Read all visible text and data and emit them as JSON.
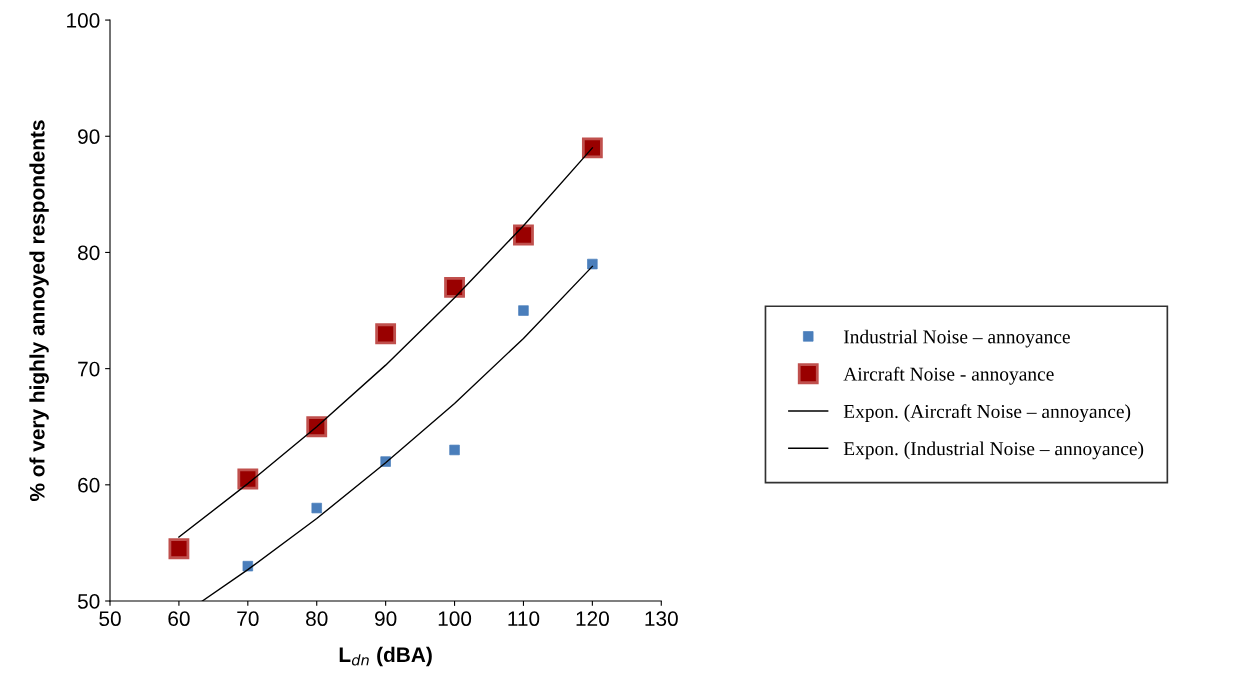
{
  "chart_data": {
    "type": "scatter",
    "xlabel": "L$_{dn}$ (dBA)",
    "ylabel": "% of very highly annoyed respondents",
    "xlim": [
      50,
      130
    ],
    "xticks": [
      50,
      60,
      70,
      80,
      90,
      100,
      110,
      120,
      130
    ],
    "ylim": [
      50,
      100
    ],
    "yticks": [
      50,
      60,
      70,
      80,
      90,
      100
    ],
    "grid": false,
    "legend": "right",
    "marker": "square",
    "series": [
      {
        "name": "Industrial Noise – annoyance",
        "color": "#4a7ebb",
        "x": [
          70,
          80,
          90,
          100,
          110,
          120
        ],
        "values": [
          53,
          58,
          62,
          63,
          75,
          79
        ]
      },
      {
        "name": "Aircraft Noise - annoyance",
        "color": "#990000",
        "x": [
          60,
          70,
          80,
          90,
          100,
          110,
          120
        ],
        "values": [
          54.5,
          60.5,
          65,
          73,
          77,
          81.5,
          89
        ]
      },
      {
        "name": "Expon. (Aircraft Noise – annoyance)",
        "type": "line",
        "color": "#000000",
        "marker": "none",
        "x": [
          60,
          70,
          80,
          90,
          100,
          110,
          120
        ],
        "values": [
          55.5,
          60.1,
          65.0,
          70.3,
          76.1,
          82.3,
          89.0
        ]
      },
      {
        "name": "Expon. (Industrial Noise – annoyance)",
        "type": "line",
        "color": "#000000",
        "marker": "none",
        "x": [
          63.4,
          70,
          80,
          90,
          100,
          110,
          120
        ],
        "values": [
          50,
          52.7,
          57.1,
          61.9,
          67.0,
          72.6,
          78.8
        ]
      }
    ]
  }
}
